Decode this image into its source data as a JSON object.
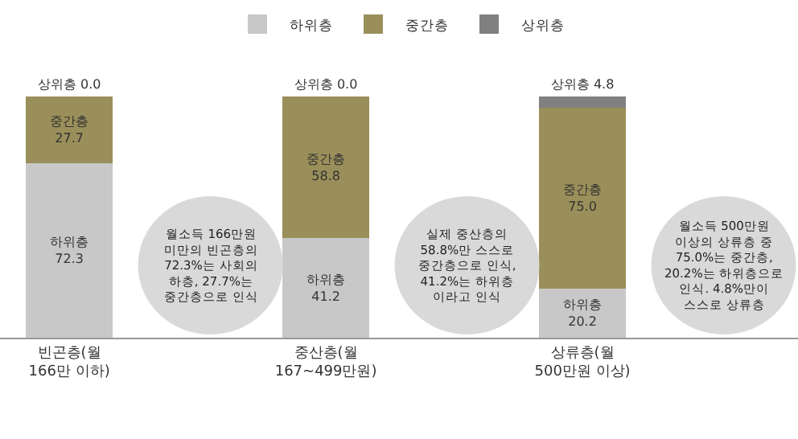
{
  "chart_data": {
    "type": "bar",
    "stacked": true,
    "legend": "top",
    "tick_labels": "x",
    "ylim": [
      0,
      100
    ],
    "categories": [
      "빈곤층(월\n166만 이하)",
      "중산층(월\n167~499만원)",
      "상류층(월\n500만원 이상)"
    ],
    "series": [
      {
        "name": "하위층",
        "color": "#c8c8c8",
        "values": [
          72.3,
          41.2,
          20.2
        ],
        "value_labels": [
          "하위층\n72.3",
          "하위층\n41.2",
          "하위층\n20.2"
        ]
      },
      {
        "name": "중간층",
        "color": "#9a8f5a",
        "values": [
          27.7,
          58.8,
          75.0
        ],
        "value_labels": [
          "중간층\n27.7",
          "중간층\n58.8",
          "중간층\n75.0"
        ]
      },
      {
        "name": "상위층",
        "color": "#808080",
        "values": [
          0.0,
          0.0,
          4.8
        ],
        "value_labels": [
          "상위층 0.0",
          "상위층 0.0",
          "상위층 4.8"
        ]
      }
    ],
    "annotations": [
      "월소득 166만원\n미만의 빈곤층의\n72.3%는 사회의\n하층, 27.7%는\n중간층으로 인식",
      "실제 중산층의\n58.8%만 스스로\n중간층으로 인식,\n41.2%는 하위층\n이라고 인식",
      "월소득 500만원\n이상의 상류층 중\n75.0%는 중간층,\n20.2%는 하위층으로\n인식. 4.8%만이\n스스로 상류층"
    ]
  }
}
